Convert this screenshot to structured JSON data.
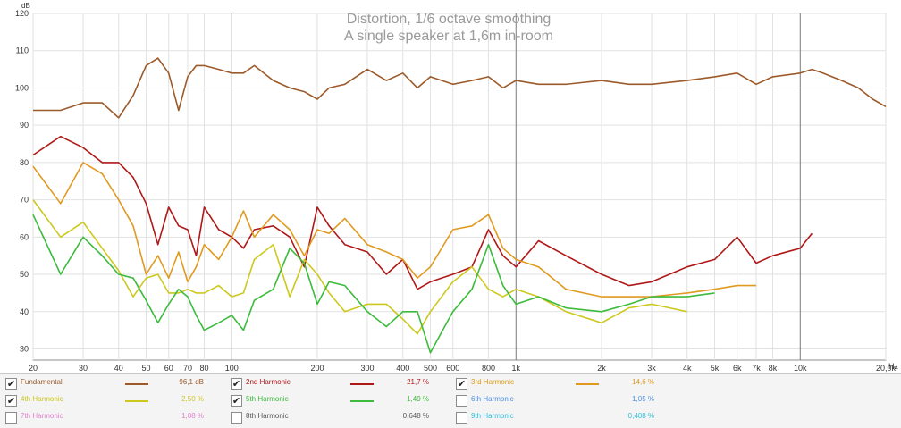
{
  "chart_data": {
    "type": "line",
    "title": "Distortion, 1/6 octave smoothing",
    "subtitle": "A single speaker at 1,6m in-room",
    "ylabel": "dB",
    "xlabel": "Hz",
    "xscale": "log",
    "xlim": [
      20,
      20000
    ],
    "ylim": [
      27,
      120
    ],
    "y_ticks": [
      30,
      40,
      50,
      60,
      70,
      80,
      90,
      100,
      110,
      120
    ],
    "x_ticks": [
      {
        "v": 20,
        "t": "20"
      },
      {
        "v": 30,
        "t": "30"
      },
      {
        "v": 40,
        "t": "40"
      },
      {
        "v": 50,
        "t": "50"
      },
      {
        "v": 60,
        "t": "60"
      },
      {
        "v": 70,
        "t": "70"
      },
      {
        "v": 80,
        "t": "80"
      },
      {
        "v": 100,
        "t": "100"
      },
      {
        "v": 200,
        "t": "200"
      },
      {
        "v": 300,
        "t": "300"
      },
      {
        "v": 400,
        "t": "400"
      },
      {
        "v": 500,
        "t": "500"
      },
      {
        "v": 600,
        "t": "600"
      },
      {
        "v": 800,
        "t": "800"
      },
      {
        "v": 1000,
        "t": "1k"
      },
      {
        "v": 2000,
        "t": "2k"
      },
      {
        "v": 3000,
        "t": "3k"
      },
      {
        "v": 4000,
        "t": "4k"
      },
      {
        "v": 5000,
        "t": "5k"
      },
      {
        "v": 6000,
        "t": "6k"
      },
      {
        "v": 7000,
        "t": "7k"
      },
      {
        "v": 8000,
        "t": "8k"
      },
      {
        "v": 10000,
        "t": "10k"
      },
      {
        "v": 20000,
        "t": "20,0k"
      }
    ],
    "grid": true,
    "series": [
      {
        "name": "Fundamental",
        "color": "#9c5a2a",
        "x": [
          20,
          25,
          30,
          35,
          40,
          45,
          50,
          55,
          60,
          65,
          70,
          75,
          80,
          90,
          100,
          110,
          120,
          140,
          160,
          180,
          200,
          220,
          250,
          300,
          350,
          400,
          450,
          500,
          600,
          700,
          800,
          900,
          1000,
          1200,
          1500,
          2000,
          2500,
          3000,
          4000,
          5000,
          6000,
          7000,
          8000,
          10000,
          11000,
          12000,
          14000,
          16000,
          18000,
          20000
        ],
        "y": [
          94,
          94,
          96,
          96,
          92,
          98,
          106,
          108,
          104,
          94,
          103,
          106,
          106,
          105,
          104,
          104,
          106,
          102,
          100,
          99,
          97,
          100,
          101,
          105,
          102,
          104,
          100,
          103,
          101,
          102,
          103,
          100,
          102,
          101,
          101,
          102,
          101,
          101,
          102,
          103,
          104,
          101,
          103,
          104,
          105,
          104,
          102,
          100,
          97,
          95
        ]
      },
      {
        "name": "2nd Harmonic",
        "color": "#b01818",
        "x": [
          20,
          25,
          30,
          35,
          40,
          45,
          50,
          55,
          60,
          65,
          70,
          75,
          80,
          90,
          100,
          110,
          120,
          140,
          160,
          180,
          200,
          220,
          250,
          300,
          350,
          400,
          450,
          500,
          600,
          700,
          800,
          900,
          1000,
          1200,
          1500,
          2000,
          2500,
          3000,
          4000,
          5000,
          6000,
          7000,
          8000,
          10000,
          11000
        ],
        "y": [
          82,
          87,
          84,
          80,
          80,
          76,
          69,
          58,
          68,
          63,
          62,
          55,
          68,
          62,
          60,
          57,
          62,
          63,
          60,
          52,
          68,
          63,
          58,
          56,
          50,
          54,
          46,
          48,
          50,
          52,
          62,
          55,
          52,
          59,
          55,
          50,
          47,
          48,
          52,
          54,
          60,
          53,
          55,
          57,
          61
        ]
      },
      {
        "name": "3rd Harmonic",
        "color": "#e09a20",
        "x": [
          20,
          25,
          30,
          35,
          40,
          45,
          50,
          55,
          60,
          65,
          70,
          75,
          80,
          90,
          100,
          110,
          120,
          140,
          160,
          180,
          200,
          220,
          250,
          300,
          350,
          400,
          450,
          500,
          600,
          700,
          800,
          900,
          1000,
          1200,
          1500,
          2000,
          2500,
          3000,
          4000,
          5000,
          6000,
          7000
        ],
        "y": [
          79,
          69,
          80,
          77,
          70,
          63,
          50,
          55,
          49,
          56,
          48,
          52,
          58,
          54,
          60,
          67,
          60,
          66,
          62,
          55,
          62,
          61,
          65,
          58,
          56,
          54,
          49,
          52,
          62,
          63,
          66,
          57,
          54,
          52,
          46,
          44,
          44,
          44,
          45,
          46,
          47,
          47
        ]
      },
      {
        "name": "4th Harmonic",
        "color": "#cdc81e",
        "x": [
          20,
          25,
          30,
          35,
          40,
          45,
          50,
          55,
          60,
          65,
          70,
          75,
          80,
          90,
          100,
          110,
          120,
          140,
          160,
          180,
          200,
          220,
          250,
          300,
          350,
          400,
          450,
          500,
          600,
          700,
          800,
          900,
          1000,
          1200,
          1500,
          2000,
          2500,
          3000,
          4000
        ],
        "y": [
          70,
          60,
          64,
          57,
          51,
          44,
          49,
          50,
          45,
          45,
          46,
          45,
          45,
          47,
          44,
          45,
          54,
          58,
          44,
          54,
          50,
          45,
          40,
          42,
          42,
          38,
          34,
          40,
          48,
          52,
          46,
          44,
          46,
          44,
          40,
          37,
          41,
          42,
          40
        ]
      },
      {
        "name": "5th Harmonic",
        "color": "#3cbb3c",
        "x": [
          20,
          25,
          30,
          35,
          40,
          45,
          50,
          55,
          60,
          65,
          70,
          75,
          80,
          90,
          100,
          110,
          120,
          140,
          160,
          180,
          200,
          220,
          250,
          300,
          350,
          400,
          450,
          500,
          600,
          700,
          800,
          900,
          1000,
          1200,
          1500,
          2000,
          2500,
          3000,
          4000,
          5000
        ],
        "y": [
          66,
          50,
          60,
          55,
          50,
          49,
          43,
          37,
          42,
          46,
          44,
          39,
          35,
          37,
          39,
          35,
          43,
          46,
          57,
          53,
          42,
          48,
          47,
          40,
          36,
          40,
          40,
          29,
          40,
          46,
          58,
          47,
          42,
          44,
          41,
          40,
          42,
          44,
          44,
          45
        ]
      },
      {
        "name": "6th Harmonic",
        "color": "#4f8fe0",
        "x": [],
        "y": []
      },
      {
        "name": "7th Harmonic",
        "color": "#e07fd0",
        "x": [],
        "y": []
      },
      {
        "name": "8th Harmonic",
        "color": "#a0a0a0",
        "x": [],
        "y": []
      },
      {
        "name": "9th Harmonic",
        "color": "#30c0d8",
        "x": [],
        "y": []
      }
    ]
  },
  "legend": {
    "items": [
      {
        "label": "Fundamental",
        "value": "96,1 dB",
        "checked": true,
        "color": "#9c5a2a"
      },
      {
        "label": "2nd Harmonic",
        "value": "21,7 %",
        "checked": true,
        "color": "#b01818"
      },
      {
        "label": "3rd Harmonic",
        "value": "14,6 %",
        "checked": true,
        "color": "#e09a20"
      },
      {
        "label": "4th Harmonic",
        "value": "2,50 %",
        "checked": true,
        "color": "#cdc81e"
      },
      {
        "label": "5th Harmonic",
        "value": "1,49 %",
        "checked": true,
        "color": "#3cbb3c"
      },
      {
        "label": "6th Harmonic",
        "value": "1,05 %",
        "checked": false,
        "color": "#4f8fe0"
      },
      {
        "label": "7th Harmonic",
        "value": "1,08 %",
        "checked": false,
        "color": "#e07fd0"
      },
      {
        "label": "8th Harmonic",
        "value": "0,648 %",
        "checked": false,
        "color": "#a0a0a0"
      },
      {
        "label": "9th Harmonic",
        "value": "0,408 %",
        "checked": false,
        "color": "#30c0d8"
      }
    ]
  }
}
